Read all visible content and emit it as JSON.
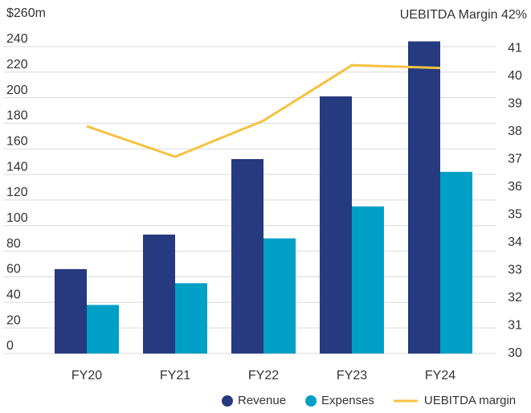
{
  "chart_data": {
    "type": "bar",
    "categories": [
      "FY20",
      "FY21",
      "FY22",
      "FY23",
      "FY24"
    ],
    "series": [
      {
        "name": "Revenue",
        "type": "bar",
        "color": "#253a7f",
        "values": [
          66,
          93,
          152,
          201,
          244
        ]
      },
      {
        "name": "Expenses",
        "type": "bar",
        "color": "#00a0c6",
        "values": [
          38,
          55,
          90,
          115,
          142
        ]
      },
      {
        "name": "UEBITDA margin",
        "type": "line",
        "axis": "y2",
        "color": "#f5c242",
        "values": [
          38.2,
          37.1,
          38.4,
          40.4,
          40.3
        ]
      }
    ],
    "ylim": [
      0,
      260
    ],
    "yticks": [
      0,
      20,
      40,
      60,
      80,
      100,
      120,
      140,
      160,
      180,
      200,
      220,
      240,
      {
        "value": 260,
        "label": "$260m"
      }
    ],
    "y2lim": [
      30,
      42
    ],
    "y2ticks": [
      30,
      31,
      32,
      33,
      34,
      35,
      36,
      37,
      38,
      39,
      40,
      41,
      {
        "value": 42,
        "label": "UEBITDA Margin 42%"
      }
    ],
    "grid": true,
    "legend": "bottom"
  }
}
